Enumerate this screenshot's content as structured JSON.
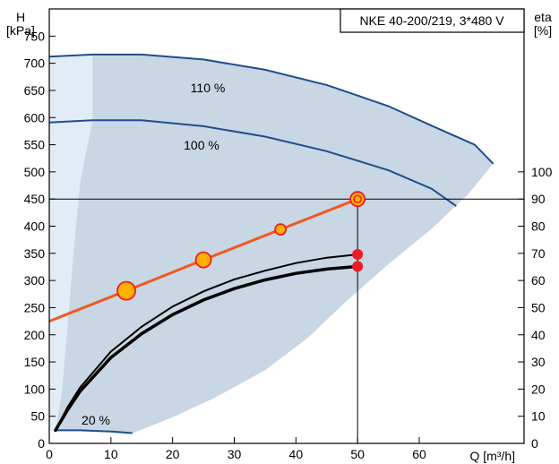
{
  "chart_data": {
    "type": "line",
    "title": "NKE 40-200/219, 3*480 V",
    "left_axis": {
      "label_line1": "H",
      "label_line2": "[kPa]",
      "range": [
        0,
        800
      ],
      "ticks": [
        0,
        50,
        100,
        150,
        200,
        250,
        300,
        350,
        400,
        450,
        500,
        550,
        600,
        650,
        700,
        750
      ]
    },
    "right_axis": {
      "label_line1": "eta",
      "label_line2": "[%]",
      "range": [
        0,
        160
      ],
      "ticks": [
        0,
        10,
        20,
        30,
        40,
        50,
        60,
        70,
        80,
        90,
        100
      ]
    },
    "x_axis": {
      "label": "Q [m³/h]",
      "range": [
        0,
        77
      ],
      "ticks": [
        0,
        10,
        20,
        30,
        40,
        50,
        60
      ]
    },
    "speed_curves": [
      {
        "name": "110 %",
        "points": [
          [
            0,
            712
          ],
          [
            7,
            716
          ],
          [
            15,
            716
          ],
          [
            25,
            707
          ],
          [
            35,
            688
          ],
          [
            45,
            660
          ],
          [
            55,
            621
          ],
          [
            62,
            585
          ],
          [
            69,
            550
          ],
          [
            72,
            515
          ]
        ]
      },
      {
        "name": "100 %",
        "points": [
          [
            0,
            591
          ],
          [
            7,
            595
          ],
          [
            15,
            595
          ],
          [
            25,
            584
          ],
          [
            35,
            565
          ],
          [
            45,
            538
          ],
          [
            55,
            503
          ],
          [
            62,
            469
          ],
          [
            66,
            437
          ]
        ]
      },
      {
        "name": "20 %",
        "points": [
          [
            1,
            24
          ],
          [
            5,
            24
          ],
          [
            10,
            22
          ],
          [
            13.5,
            19
          ]
        ]
      }
    ],
    "region_hatched_left": [
      [
        0,
        712
      ],
      [
        0,
        24
      ],
      [
        1,
        24
      ],
      [
        2,
        90
      ],
      [
        3,
        220
      ],
      [
        4,
        360
      ],
      [
        5,
        480
      ],
      [
        7,
        595
      ],
      [
        7,
        716
      ],
      [
        0,
        712
      ]
    ],
    "region_operating": [
      [
        7,
        716
      ],
      [
        15,
        716
      ],
      [
        25,
        707
      ],
      [
        35,
        688
      ],
      [
        45,
        660
      ],
      [
        55,
        621
      ],
      [
        62,
        585
      ],
      [
        69,
        550
      ],
      [
        72,
        515
      ],
      [
        68,
        460
      ],
      [
        62,
        395
      ],
      [
        55,
        330
      ],
      [
        48,
        260
      ],
      [
        42,
        195
      ],
      [
        35,
        135
      ],
      [
        27,
        85
      ],
      [
        20,
        48
      ],
      [
        13.5,
        19
      ],
      [
        10,
        22
      ],
      [
        5,
        24
      ],
      [
        1,
        24
      ],
      [
        2,
        90
      ],
      [
        3,
        220
      ],
      [
        4,
        360
      ],
      [
        5,
        480
      ],
      [
        7,
        595
      ]
    ],
    "system_curve": {
      "name": "",
      "points": [
        [
          0,
          225
        ],
        [
          12.5,
          281
        ],
        [
          25,
          338
        ],
        [
          37.5,
          394
        ],
        [
          50,
          450
        ]
      ],
      "markers": [
        {
          "x": 12.5,
          "y": 281,
          "size": "large"
        },
        {
          "x": 25,
          "y": 338,
          "size": "medium"
        },
        {
          "x": 37.5,
          "y": 394,
          "size": "small"
        },
        {
          "x": 50,
          "y": 450,
          "size": "duty"
        }
      ]
    },
    "eta_curves": [
      {
        "name": "",
        "weight": "thin",
        "points": [
          [
            1,
            24
          ],
          [
            3,
            67
          ],
          [
            5,
            103
          ],
          [
            10,
            169
          ],
          [
            15,
            215
          ],
          [
            20,
            252
          ],
          [
            25,
            280
          ],
          [
            30,
            302
          ],
          [
            35,
            318
          ],
          [
            40,
            332
          ],
          [
            45,
            342
          ],
          [
            50,
            348
          ]
        ]
      },
      {
        "name": "",
        "weight": "thick",
        "points": [
          [
            1,
            24
          ],
          [
            3,
            62
          ],
          [
            5,
            96
          ],
          [
            10,
            158
          ],
          [
            15,
            202
          ],
          [
            20,
            237
          ],
          [
            25,
            264
          ],
          [
            30,
            285
          ],
          [
            35,
            301
          ],
          [
            40,
            313
          ],
          [
            45,
            321
          ],
          [
            50,
            326
          ]
        ]
      }
    ],
    "red_markers": [
      {
        "x": 50,
        "y": 348
      },
      {
        "x": 50,
        "y": 326
      }
    ],
    "duty_point": {
      "q": 50,
      "h": 450
    },
    "colors": {
      "curve": "#1f4e8c",
      "region": "#c9d6e3",
      "region_left": "#e2ecf6",
      "system_line": "#f0581e",
      "marker_fill": "#ffb000",
      "marker_red": "#ee1c25"
    }
  }
}
